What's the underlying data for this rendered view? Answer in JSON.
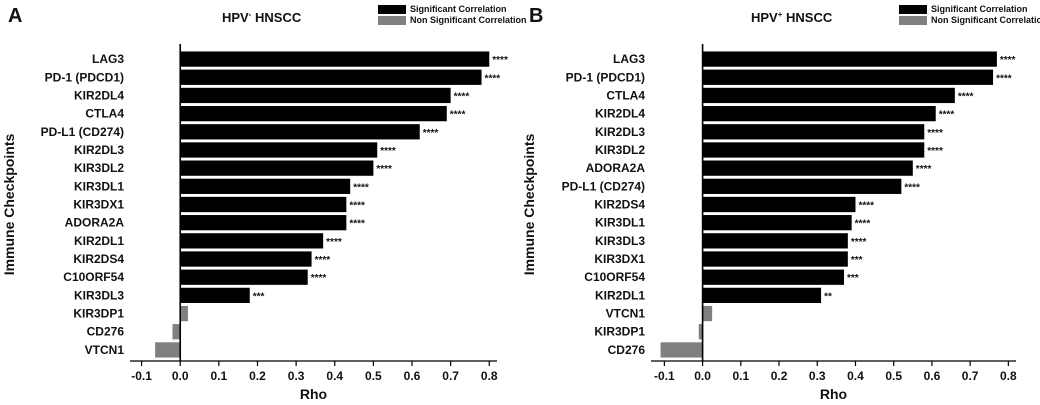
{
  "chart_data": [
    {
      "type": "bar",
      "orientation": "horizontal",
      "panel_letter": "A",
      "title": {
        "prefix": "HPV",
        "superscript": "-",
        "suffix": " HNSCC"
      },
      "xlabel": "Rho",
      "ylabel": "Immune Checkpoints",
      "xlim": [
        -0.13,
        0.82
      ],
      "xticks": [
        "-0.1",
        "0.0",
        "0.1",
        "0.2",
        "0.3",
        "0.4",
        "0.5",
        "0.6",
        "0.7",
        "0.8"
      ],
      "xtick_values": [
        -0.1,
        0.0,
        0.1,
        0.2,
        0.3,
        0.4,
        0.5,
        0.6,
        0.7,
        0.8
      ],
      "legend": [
        {
          "label": "Significant Correlation",
          "color": "#000000"
        },
        {
          "label": "Non Significant Correlation",
          "color": "#808080"
        }
      ],
      "categories": [
        "LAG3",
        "PD-1 (PDCD1)",
        "KIR2DL4",
        "CTLA4",
        "PD-L1 (CD274)",
        "KIR2DL3",
        "KIR3DL2",
        "KIR3DL1",
        "KIR3DX1",
        "ADORA2A",
        "KIR2DL1",
        "KIR2DS4",
        "C10ORF54",
        "KIR3DL3",
        "KIR3DP1",
        "CD276",
        "VTCN1"
      ],
      "values": [
        0.8,
        0.78,
        0.7,
        0.69,
        0.62,
        0.51,
        0.5,
        0.44,
        0.43,
        0.43,
        0.37,
        0.34,
        0.33,
        0.18,
        0.02,
        -0.02,
        -0.065
      ],
      "significant": [
        true,
        true,
        true,
        true,
        true,
        true,
        true,
        true,
        true,
        true,
        true,
        true,
        true,
        true,
        false,
        false,
        false
      ],
      "annotations": [
        "****",
        "****",
        "****",
        "****",
        "****",
        "****",
        "****",
        "****",
        "****",
        "****",
        "****",
        "****",
        "****",
        "***",
        "",
        "",
        ""
      ]
    },
    {
      "type": "bar",
      "orientation": "horizontal",
      "panel_letter": "B",
      "title": {
        "prefix": "HPV",
        "superscript": "+",
        "suffix": " HNSCC"
      },
      "xlabel": "Rho",
      "ylabel": "Immune Checkpoints",
      "xlim": [
        -0.135,
        0.82
      ],
      "xticks": [
        "-0.1",
        "0.0",
        "0.1",
        "0.2",
        "0.3",
        "0.4",
        "0.5",
        "0.6",
        "0.7",
        "0.8"
      ],
      "xtick_values": [
        -0.1,
        0.0,
        0.1,
        0.2,
        0.3,
        0.4,
        0.5,
        0.6,
        0.7,
        0.8
      ],
      "legend": [
        {
          "label": "Significant Correlation",
          "color": "#000000"
        },
        {
          "label": "Non Significant Correlation",
          "color": "#808080"
        }
      ],
      "categories": [
        "LAG3",
        "PD-1 (PDCD1)",
        "CTLA4",
        "KIR2DL4",
        "KIR2DL3",
        "KIR3DL2",
        "ADORA2A",
        "PD-L1 (CD274)",
        "KIR2DS4",
        "KIR3DL1",
        "KIR3DL3",
        "KIR3DX1",
        "C10ORF54",
        "KIR2DL1",
        "VTCN1",
        "KIR3DP1",
        "CD276"
      ],
      "values": [
        0.77,
        0.76,
        0.66,
        0.61,
        0.58,
        0.58,
        0.55,
        0.52,
        0.4,
        0.39,
        0.38,
        0.38,
        0.37,
        0.31,
        0.025,
        -0.01,
        -0.11
      ],
      "significant": [
        true,
        true,
        true,
        true,
        true,
        true,
        true,
        true,
        true,
        true,
        true,
        true,
        true,
        true,
        false,
        false,
        false
      ],
      "annotations": [
        "****",
        "****",
        "****",
        "****",
        "****",
        "****",
        "****",
        "****",
        "****",
        "****",
        "****",
        "***",
        "***",
        "**",
        "",
        "",
        ""
      ]
    }
  ]
}
